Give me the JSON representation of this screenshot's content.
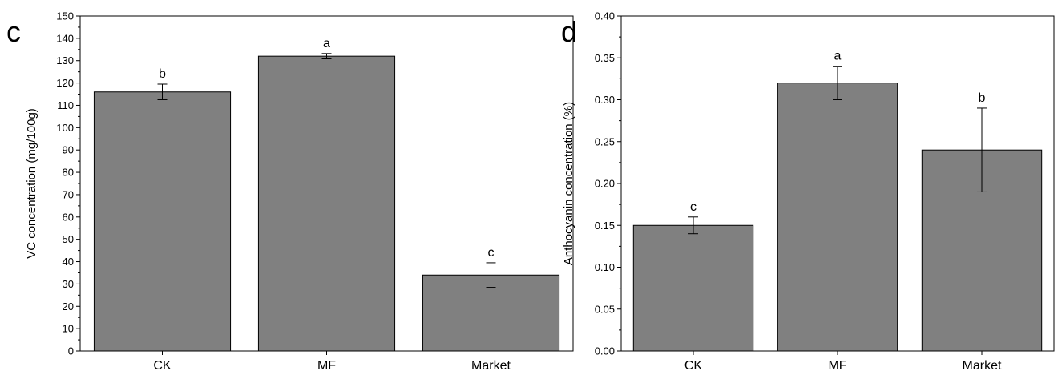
{
  "chart_data": [
    {
      "panel": "c",
      "type": "bar",
      "title": "",
      "xlabel": "",
      "ylabel": "VC concentration (mg/100g)",
      "ylim": [
        0,
        150
      ],
      "yticks": [
        0,
        10,
        20,
        30,
        40,
        50,
        60,
        70,
        80,
        90,
        100,
        110,
        120,
        130,
        140,
        150
      ],
      "categories": [
        "CK",
        "MF",
        "Market"
      ],
      "values": [
        116,
        132,
        34
      ],
      "errors": [
        3.5,
        1.2,
        5.5
      ],
      "significance_letters": [
        "b",
        "a",
        "c"
      ],
      "bar_color": "#808080",
      "grid": false
    },
    {
      "panel": "d",
      "type": "bar",
      "title": "",
      "xlabel": "",
      "ylabel": "Anthocyanin concentration (%)",
      "ylim": [
        0,
        0.4
      ],
      "yticks": [
        "0.00",
        "0.05",
        "0.10",
        "0.15",
        "0.20",
        "0.25",
        "0.30",
        "0.35",
        "0.40"
      ],
      "categories": [
        "CK",
        "MF",
        "Market"
      ],
      "values": [
        0.15,
        0.32,
        0.24
      ],
      "errors": [
        0.01,
        0.02,
        0.05
      ],
      "significance_letters": [
        "c",
        "a",
        "b"
      ],
      "bar_color": "#808080",
      "grid": false
    }
  ]
}
